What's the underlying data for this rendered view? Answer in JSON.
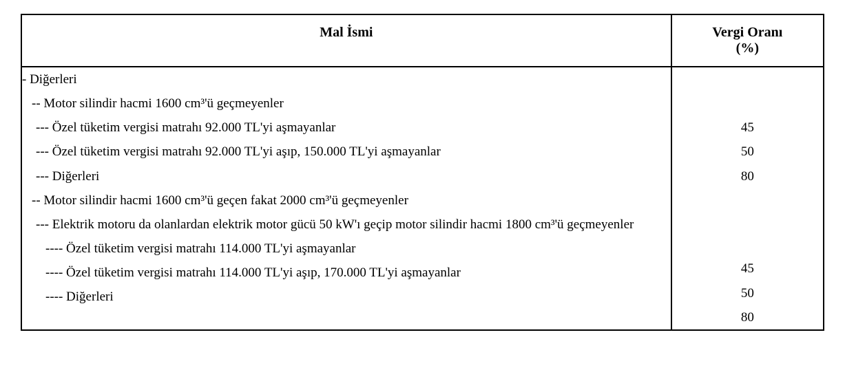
{
  "table": {
    "columns": {
      "name": "Mal İsmi",
      "rate": "Vergi Oranı\n(%)"
    },
    "rows": [
      {
        "indent": "lv1",
        "text": "- Diğerleri",
        "rate": ""
      },
      {
        "indent": "lv2",
        "text": "-- Motor silindir hacmi 1600 cm³'ü geçmeyenler",
        "rate": ""
      },
      {
        "indent": "lv3",
        "text": "--- Özel tüketim vergisi matrahı 92.000 TL'yi aşmayanlar",
        "rate": "45"
      },
      {
        "indent": "lv3",
        "text": "--- Özel tüketim vergisi matrahı 92.000 TL'yi aşıp, 150.000 TL'yi aşmayanlar",
        "rate": "50"
      },
      {
        "indent": "lv3",
        "text": "--- Diğerleri",
        "rate": "80"
      },
      {
        "indent": "lv2",
        "text": "-- Motor silindir hacmi 1600 cm³'ü geçen fakat 2000 cm³'ü geçmeyenler",
        "rate": ""
      },
      {
        "indent": "lv3",
        "text": "--- Elektrik motoru da olanlardan elektrik motor gücü 50 kW'ı geçip motor silindir hacmi 1800 cm³'ü geçmeyenler",
        "rate": "",
        "wrap": true
      },
      {
        "indent": "lv4",
        "text": "---- Özel tüketim vergisi matrahı 114.000 TL'yi aşmayanlar",
        "rate": "45"
      },
      {
        "indent": "lv4",
        "text": "---- Özel tüketim vergisi matrahı 114.000 TL'yi aşıp, 170.000 TL'yi aşmayanlar",
        "rate": "50"
      },
      {
        "indent": "lv4",
        "text": "---- Diğerleri",
        "rate": "80"
      }
    ],
    "colors": {
      "text": "#000000",
      "border": "#000000",
      "background": "#ffffff"
    },
    "fonts": {
      "family": "Times New Roman",
      "header_size_pt": 15,
      "body_size_pt": 14
    }
  }
}
